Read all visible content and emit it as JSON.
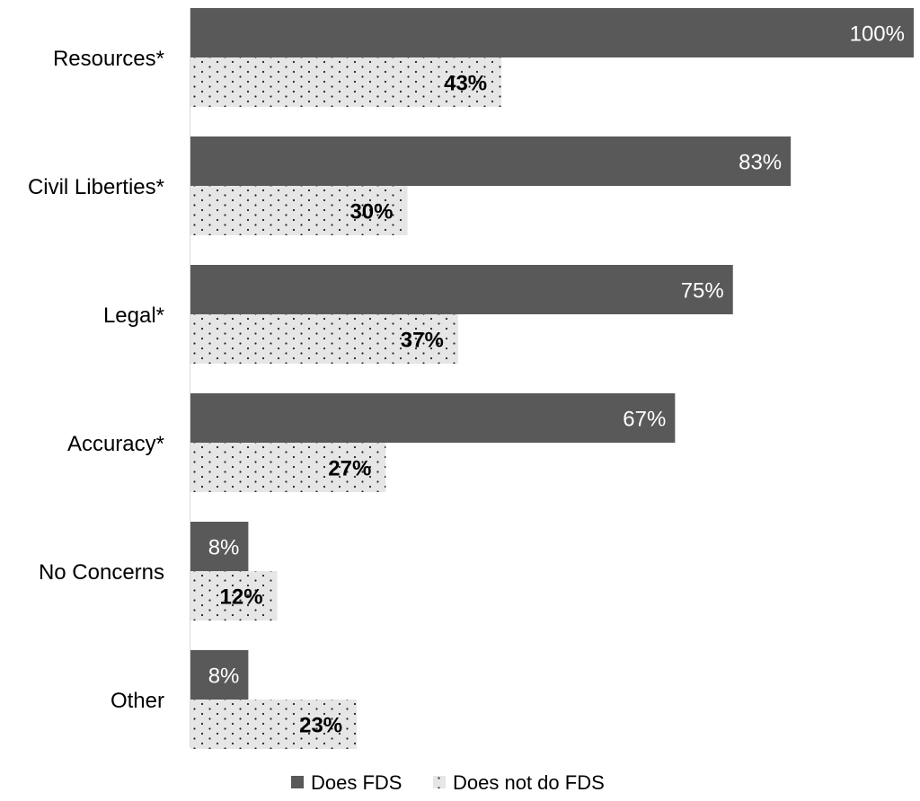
{
  "chart_data": {
    "type": "bar",
    "orientation": "horizontal",
    "categories": [
      "Resources*",
      "Civil Liberties*",
      "Legal*",
      "Accuracy*",
      "No Concerns",
      "Other"
    ],
    "series": [
      {
        "name": "Does FDS",
        "values": [
          100,
          83,
          75,
          67,
          8,
          8
        ],
        "labels": [
          "100%",
          "83%",
          "75%",
          "67%",
          "8%",
          "8%"
        ],
        "color": "#595959",
        "pattern": "solid"
      },
      {
        "name": "Does not do FDS",
        "values": [
          43,
          30,
          37,
          27,
          12,
          23
        ],
        "labels": [
          "43%",
          "30%",
          "37%",
          "27%",
          "12%",
          "23%"
        ],
        "color": "#e6e6e6",
        "pattern": "dotted"
      }
    ],
    "xlim": [
      0,
      100
    ],
    "grid": false,
    "legend": "bottom-center",
    "title": "",
    "xlabel": "",
    "ylabel": ""
  }
}
